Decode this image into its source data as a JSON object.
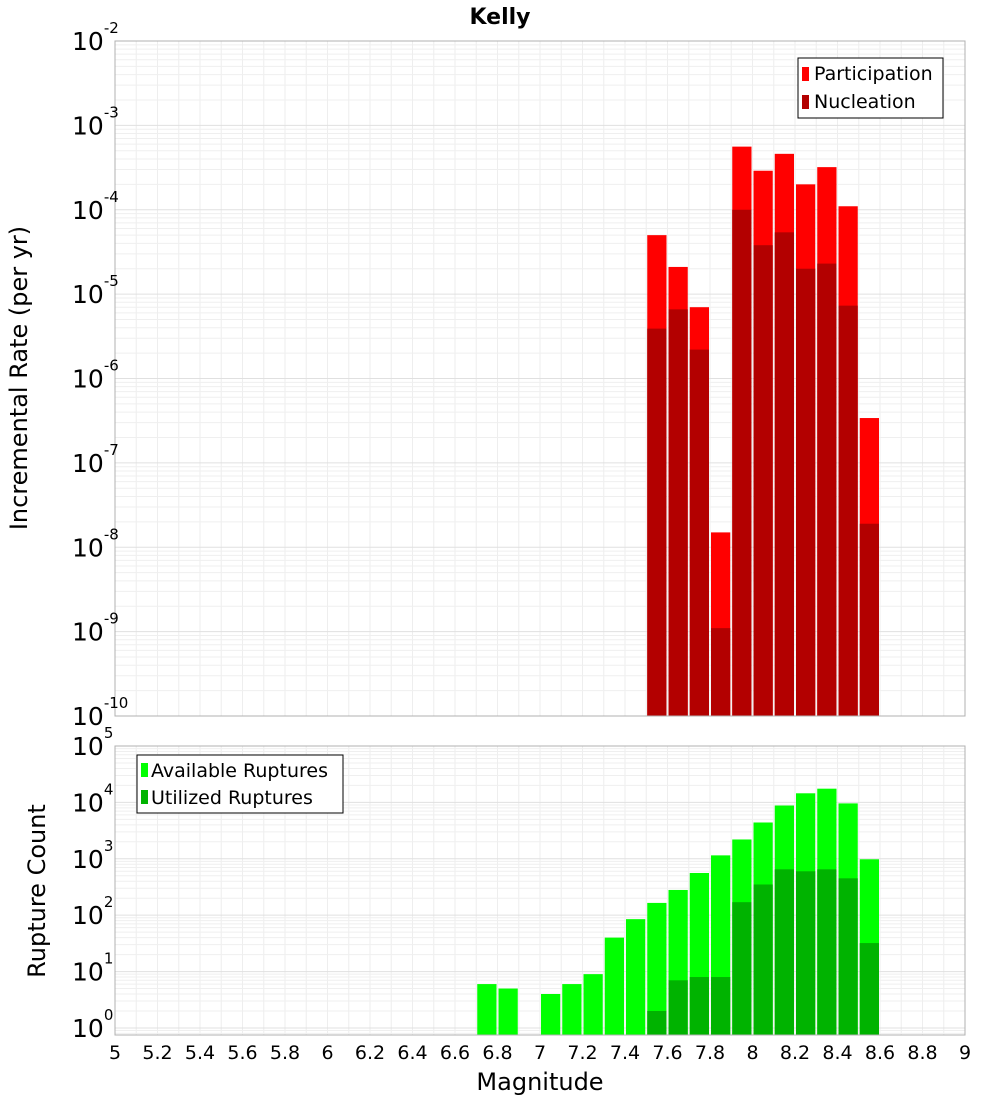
{
  "chart_data": [
    {
      "type": "bar",
      "title": "Kelly",
      "xlabel": "",
      "ylabel": "Incremental Rate (per yr)",
      "yscale": "log",
      "ylim": [
        1e-10,
        0.01
      ],
      "xlim": [
        5,
        9
      ],
      "grid": true,
      "legend_position": "top-right",
      "bar_width": 0.1,
      "y_ticks": [
        {
          "mantissa": "10",
          "exponent": "-10"
        },
        {
          "mantissa": "10",
          "exponent": "-9"
        },
        {
          "mantissa": "10",
          "exponent": "-8"
        },
        {
          "mantissa": "10",
          "exponent": "-7"
        },
        {
          "mantissa": "10",
          "exponent": "-6"
        },
        {
          "mantissa": "10",
          "exponent": "-5"
        },
        {
          "mantissa": "10",
          "exponent": "-4"
        },
        {
          "mantissa": "10",
          "exponent": "-3"
        },
        {
          "mantissa": "10",
          "exponent": "-2"
        }
      ],
      "series": [
        {
          "name": "Participation",
          "color": "#ff0000",
          "x": [
            7.55,
            7.65,
            7.75,
            7.85,
            7.95,
            8.05,
            8.15,
            8.25,
            8.35,
            8.45,
            8.55
          ],
          "values": [
            5e-05,
            2.1e-05,
            7e-06,
            1.5e-08,
            0.00056,
            0.00029,
            0.00046,
            0.0002,
            0.00032,
            0.00011,
            3.4e-07
          ]
        },
        {
          "name": "Nucleation",
          "color": "#b30000",
          "x": [
            7.55,
            7.65,
            7.75,
            7.85,
            7.95,
            8.05,
            8.15,
            8.25,
            8.35,
            8.45,
            8.55
          ],
          "values": [
            3.9e-06,
            6.6e-06,
            2.2e-06,
            1.1e-09,
            0.0001,
            3.8e-05,
            5.4e-05,
            2e-05,
            2.3e-05,
            7.3e-06,
            1.9e-08
          ]
        }
      ]
    },
    {
      "type": "bar",
      "title": "",
      "xlabel": "Magnitude",
      "ylabel": "Rupture Count",
      "yscale": "log",
      "ylim": [
        0.75,
        100000
      ],
      "xlim": [
        5,
        9
      ],
      "grid": true,
      "legend_position": "top-left",
      "bar_width": 0.1,
      "x_ticks": [
        "5",
        "5.2",
        "5.4",
        "5.6",
        "5.8",
        "6",
        "6.2",
        "6.4",
        "6.6",
        "6.8",
        "7",
        "7.2",
        "7.4",
        "7.6",
        "7.8",
        "8",
        "8.2",
        "8.4",
        "8.6",
        "8.8",
        "9"
      ],
      "y_ticks": [
        {
          "mantissa": "10",
          "exponent": "0"
        },
        {
          "mantissa": "10",
          "exponent": "1"
        },
        {
          "mantissa": "10",
          "exponent": "2"
        },
        {
          "mantissa": "10",
          "exponent": "3"
        },
        {
          "mantissa": "10",
          "exponent": "4"
        },
        {
          "mantissa": "10",
          "exponent": "5"
        }
      ],
      "series": [
        {
          "name": "Available Ruptures",
          "color": "#00ff00",
          "x": [
            6.75,
            6.85,
            7.05,
            7.15,
            7.25,
            7.35,
            7.45,
            7.55,
            7.65,
            7.75,
            7.85,
            7.95,
            8.05,
            8.15,
            8.25,
            8.35,
            8.45,
            8.55
          ],
          "values": [
            6,
            5,
            4,
            6,
            9,
            40,
            85,
            165,
            280,
            560,
            1150,
            2200,
            4400,
            8800,
            14500,
            17500,
            9600,
            980
          ]
        },
        {
          "name": "Utilized Ruptures",
          "color": "#00b300",
          "x": [
            7.55,
            7.65,
            7.75,
            7.85,
            7.95,
            8.05,
            8.15,
            8.25,
            8.35,
            8.45,
            8.55
          ],
          "values": [
            2,
            7,
            8,
            8,
            170,
            350,
            650,
            600,
            650,
            450,
            32
          ]
        }
      ]
    }
  ]
}
